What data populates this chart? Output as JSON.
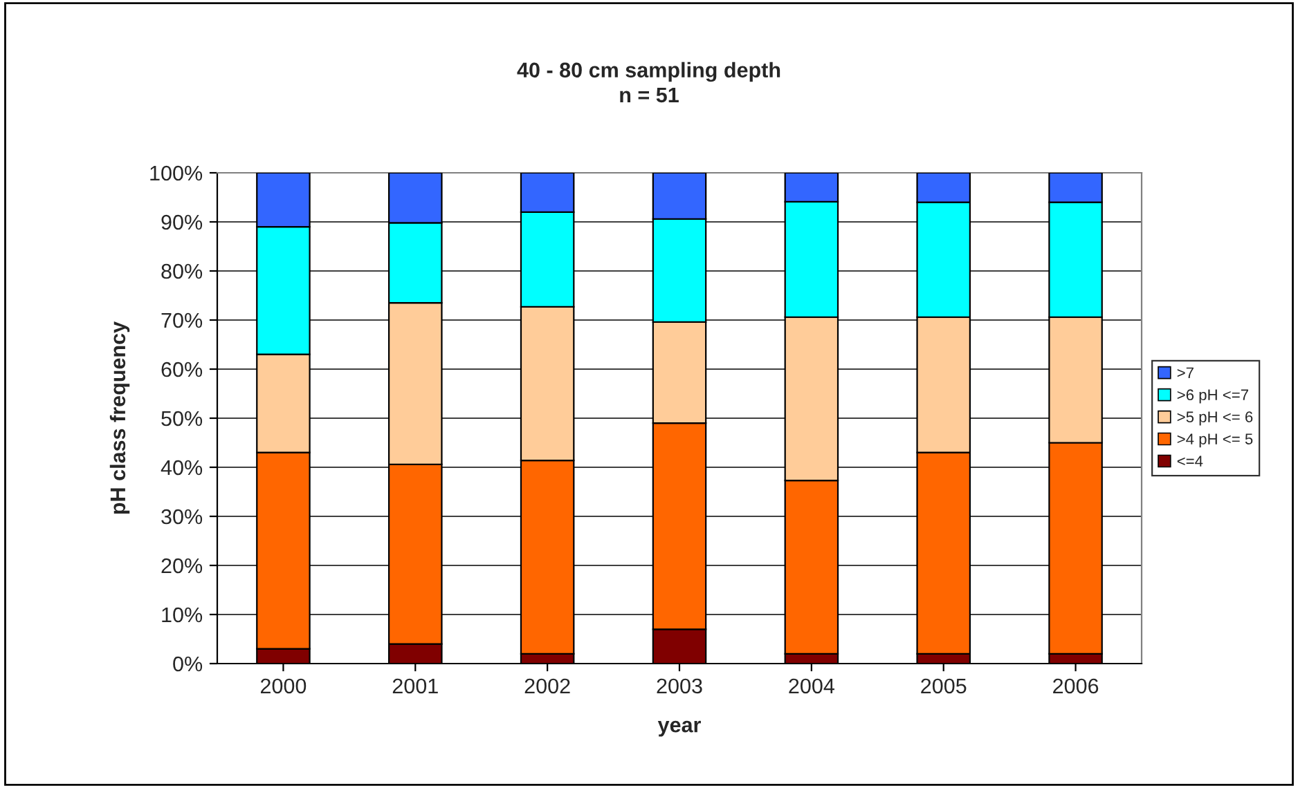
{
  "chart_data": {
    "type": "bar",
    "stacked": true,
    "title": "40 - 80 cm sampling depth",
    "subtitle": "n = 51",
    "xlabel": "year",
    "ylabel": "pH class frequency",
    "categories": [
      "2000",
      "2001",
      "2002",
      "2003",
      "2004",
      "2005",
      "2006"
    ],
    "series": [
      {
        "name": "<=4",
        "color": "#800000",
        "values": [
          3,
          4,
          2,
          7,
          2,
          2,
          2
        ]
      },
      {
        "name": ">4 pH <= 5",
        "color": "#ff6600",
        "values": [
          40,
          36.6,
          39.4,
          42,
          35.3,
          41,
          43
        ]
      },
      {
        "name": ">5 pH <= 6",
        "color": "#ffcc99",
        "values": [
          20,
          32.9,
          31.3,
          20.6,
          33.3,
          27.6,
          25.6
        ]
      },
      {
        "name": ">6 pH <=7",
        "color": "#00ffff",
        "values": [
          26,
          16.3,
          19.3,
          21,
          23.5,
          23.4,
          23.4
        ]
      },
      {
        "name": ">7",
        "color": "#3366ff",
        "values": [
          11,
          10.2,
          8,
          9.4,
          5.9,
          6,
          6
        ]
      }
    ],
    "ylim": [
      0,
      100
    ],
    "yticks": [
      {
        "value": 0,
        "label": "0%"
      },
      {
        "value": 10,
        "label": "10%"
      },
      {
        "value": 20,
        "label": "20%"
      },
      {
        "value": 30,
        "label": "30%"
      },
      {
        "value": 40,
        "label": "40%"
      },
      {
        "value": 50,
        "label": "50%"
      },
      {
        "value": 60,
        "label": "60%"
      },
      {
        "value": 70,
        "label": "70%"
      },
      {
        "value": 80,
        "label": "80%"
      },
      {
        "value": 90,
        "label": "90%"
      },
      {
        "value": 100,
        "label": "100%"
      }
    ],
    "grid": "y",
    "legend": "right"
  }
}
